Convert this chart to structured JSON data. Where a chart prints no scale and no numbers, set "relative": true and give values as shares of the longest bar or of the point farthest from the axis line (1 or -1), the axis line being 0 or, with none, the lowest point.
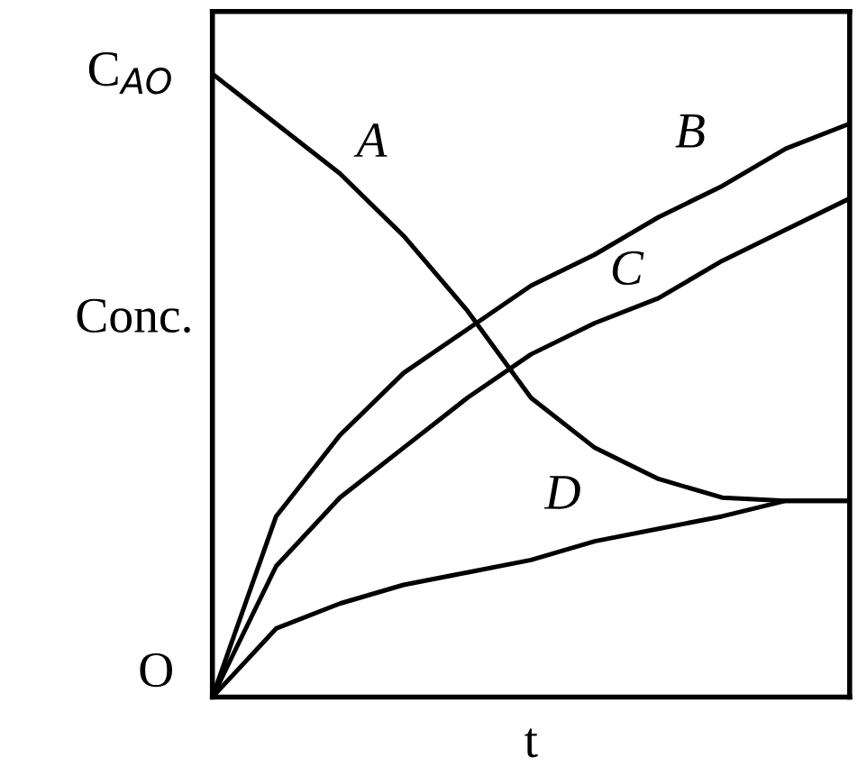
{
  "chart_data": {
    "type": "line",
    "xlabel": "t",
    "ylabel": "Conc.",
    "categories": [
      null,
      null,
      null,
      null,
      null,
      null,
      null,
      null,
      null,
      null,
      null
    ],
    "series": [
      {
        "name": "A",
        "color": "#000000",
        "values": [
          1.0,
          0.92,
          0.84,
          0.74,
          0.62,
          0.48,
          0.4,
          0.35,
          0.32,
          0.315,
          0.315
        ]
      },
      {
        "name": "B",
        "color": "#000000",
        "values": [
          0,
          0.29,
          0.42,
          0.52,
          0.59,
          0.66,
          0.71,
          0.77,
          0.82,
          0.88,
          0.92
        ]
      },
      {
        "name": "C",
        "color": "#000000",
        "values": [
          0,
          0.21,
          0.32,
          0.4,
          0.48,
          0.55,
          0.6,
          0.64,
          0.7,
          0.75,
          0.8
        ]
      },
      {
        "name": "D",
        "color": "#000000",
        "values": [
          0,
          0.11,
          0.15,
          0.18,
          0.2,
          0.22,
          0.25,
          0.27,
          0.29,
          0.315,
          0.315
        ]
      }
    ],
    "relative": true,
    "annotations": [
      "O",
      "C$_{AO}$"
    ],
    "grid": false,
    "legend": false,
    "marker": "none",
    "line_style": "solid"
  }
}
